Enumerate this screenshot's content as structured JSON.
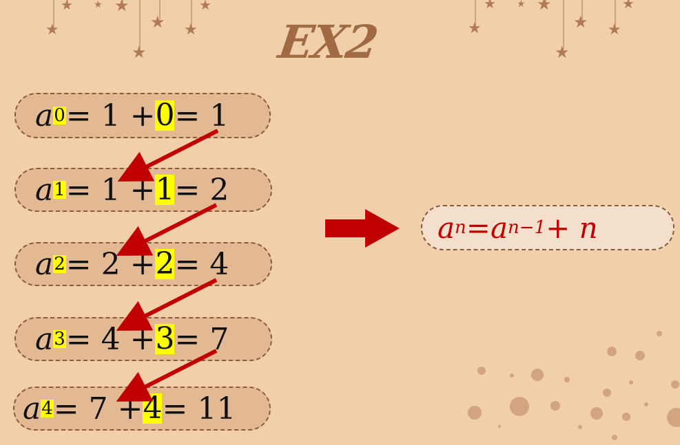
{
  "title": "EX2",
  "rows": [
    {
      "var": "a",
      "sub": "0",
      "eq1": " = 1 + ",
      "term": "0",
      "eq2": " = 1"
    },
    {
      "var": "a",
      "sub": "1",
      "eq1": " = 1 + ",
      "term": "1",
      "eq2": " = 2"
    },
    {
      "var": "a",
      "sub": "2",
      "eq1": " = 2 + ",
      "term": "2",
      "eq2": " = 4"
    },
    {
      "var": "a",
      "sub": "3",
      "eq1": " = 4 + ",
      "term": "3",
      "eq2": " = 7"
    },
    {
      "var": "a",
      "sub": "4",
      "eq1": " = 7 + ",
      "term": "4",
      "eq2": " = 11"
    }
  ],
  "formula": {
    "lhs": "a",
    "lhs_sub": "n",
    "eq": " =  ",
    "rhs": "a",
    "rhs_sub": "n−1",
    "tail": " + n"
  },
  "colors": {
    "background": "#f0cfaa",
    "arrow": "#c00000",
    "highlight": "#ffff00",
    "decor": "#b07a55"
  }
}
